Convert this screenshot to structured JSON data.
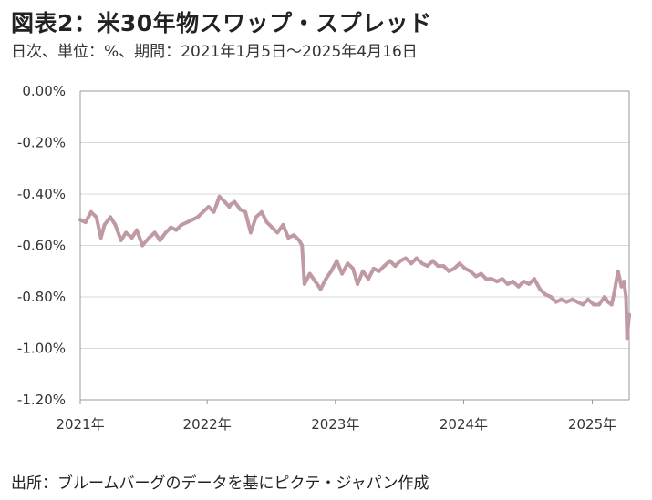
{
  "title": "図表2：米30年物スワップ・スプレッド",
  "subtitle": "日次、単位：%、期間：2021年1月5日～2025年4月16日",
  "source": "出所：ブルームバーグのデータを基にピクテ・ジャパン作成",
  "colors": {
    "line": "#c09aa2",
    "grid": "#d9d9d9",
    "axis": "#999999"
  },
  "chart_data": {
    "type": "line",
    "title": "図表2：米30年物スワップ・スプレッド",
    "xlabel": "",
    "ylabel": "",
    "ylim": [
      -1.2,
      0.0
    ],
    "y_ticks": [
      0.0,
      -0.2,
      -0.4,
      -0.6,
      -0.8,
      -1.0,
      -1.2
    ],
    "y_tick_labels": [
      "0.00%",
      "-0.20%",
      "-0.40%",
      "-0.60%",
      "-0.80%",
      "-1.00%",
      "-1.20%"
    ],
    "x_tick_labels": [
      "2021年",
      "2022年",
      "2023年",
      "2024年",
      "2025年"
    ],
    "xlim": [
      "2021-01-05",
      "2025-04-16"
    ],
    "grid": true,
    "series": [
      {
        "x": [
          "2021-01-05",
          "2021-01-20",
          "2021-02-05",
          "2021-02-20",
          "2021-03-05",
          "2021-03-15",
          "2021-04-01",
          "2021-04-15",
          "2021-05-01",
          "2021-05-15",
          "2021-06-01",
          "2021-06-15",
          "2021-07-01",
          "2021-07-20",
          "2021-08-05",
          "2021-08-20",
          "2021-09-05",
          "2021-09-20",
          "2021-10-05",
          "2021-10-20",
          "2021-11-05",
          "2021-11-20",
          "2021-12-05",
          "2021-12-20",
          "2022-01-05",
          "2022-01-20",
          "2022-02-05",
          "2022-02-20",
          "2022-03-05",
          "2022-03-10",
          "2022-03-20",
          "2022-04-05",
          "2022-04-20",
          "2022-05-05",
          "2022-05-20",
          "2022-06-05",
          "2022-06-20",
          "2022-07-05",
          "2022-07-20",
          "2022-08-05",
          "2022-08-20",
          "2022-09-05",
          "2022-09-20",
          "2022-09-28",
          "2022-10-05",
          "2022-10-20",
          "2022-11-05",
          "2022-11-20",
          "2022-12-05",
          "2022-12-20",
          "2023-01-05",
          "2023-01-20",
          "2023-02-05",
          "2023-02-20",
          "2023-03-05",
          "2023-03-20",
          "2023-04-05",
          "2023-04-20",
          "2023-05-05",
          "2023-05-20",
          "2023-06-05",
          "2023-06-20",
          "2023-07-05",
          "2023-07-20",
          "2023-08-05",
          "2023-08-20",
          "2023-09-05",
          "2023-09-20",
          "2023-10-05",
          "2023-10-20",
          "2023-11-05",
          "2023-11-20",
          "2023-12-05",
          "2023-12-20",
          "2024-01-05",
          "2024-01-20",
          "2024-02-05",
          "2024-02-20",
          "2024-03-05",
          "2024-03-20",
          "2024-04-05",
          "2024-04-20",
          "2024-05-05",
          "2024-05-20",
          "2024-06-05",
          "2024-06-20",
          "2024-07-05",
          "2024-07-20",
          "2024-08-05",
          "2024-08-20",
          "2024-09-05",
          "2024-09-20",
          "2024-10-05",
          "2024-10-20",
          "2024-11-05",
          "2024-11-20",
          "2024-12-05",
          "2024-12-20",
          "2025-01-05",
          "2025-01-20",
          "2025-02-05",
          "2025-02-15",
          "2025-02-25",
          "2025-03-05",
          "2025-03-15",
          "2025-03-25",
          "2025-04-01",
          "2025-04-07",
          "2025-04-10",
          "2025-04-16"
        ],
        "values": [
          -0.5,
          -0.51,
          -0.47,
          -0.49,
          -0.57,
          -0.52,
          -0.49,
          -0.52,
          -0.58,
          -0.55,
          -0.57,
          -0.54,
          -0.6,
          -0.57,
          -0.55,
          -0.58,
          -0.55,
          -0.53,
          -0.54,
          -0.52,
          -0.51,
          -0.5,
          -0.49,
          -0.47,
          -0.45,
          -0.47,
          -0.41,
          -0.43,
          -0.45,
          -0.44,
          -0.43,
          -0.46,
          -0.47,
          -0.55,
          -0.49,
          -0.47,
          -0.51,
          -0.53,
          -0.55,
          -0.52,
          -0.57,
          -0.56,
          -0.58,
          -0.6,
          -0.75,
          -0.71,
          -0.74,
          -0.77,
          -0.73,
          -0.7,
          -0.66,
          -0.71,
          -0.67,
          -0.69,
          -0.75,
          -0.7,
          -0.73,
          -0.69,
          -0.7,
          -0.68,
          -0.66,
          -0.68,
          -0.66,
          -0.65,
          -0.67,
          -0.65,
          -0.67,
          -0.68,
          -0.66,
          -0.68,
          -0.68,
          -0.7,
          -0.69,
          -0.67,
          -0.69,
          -0.7,
          -0.72,
          -0.71,
          -0.73,
          -0.73,
          -0.74,
          -0.73,
          -0.75,
          -0.74,
          -0.76,
          -0.74,
          -0.75,
          -0.73,
          -0.77,
          -0.79,
          -0.8,
          -0.82,
          -0.81,
          -0.82,
          -0.81,
          -0.82,
          -0.83,
          -0.81,
          -0.83,
          -0.83,
          -0.8,
          -0.82,
          -0.83,
          -0.78,
          -0.7,
          -0.76,
          -0.74,
          -0.8,
          -0.96,
          -0.87
        ]
      }
    ]
  }
}
